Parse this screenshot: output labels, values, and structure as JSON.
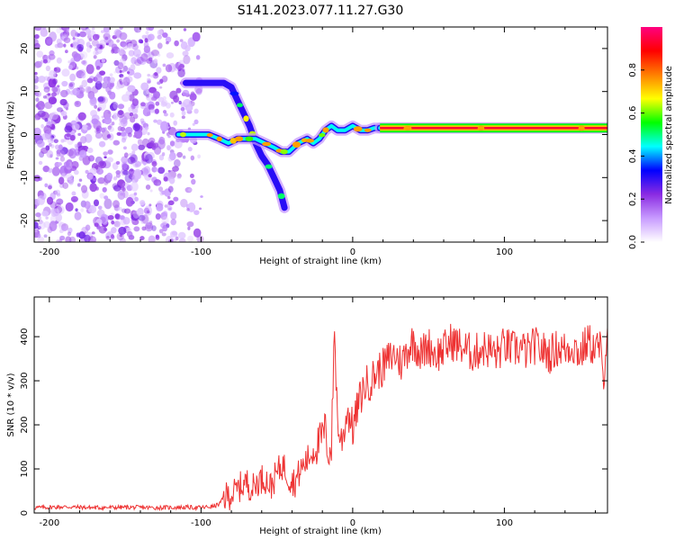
{
  "title": "S141.2023.077.11.27.G30",
  "chart_data": [
    {
      "type": "heatmap",
      "xlabel": "Height of straight line (km)",
      "ylabel": "Frequency (Hz)",
      "xlim": [
        -210,
        168
      ],
      "ylim": [
        -25,
        25
      ],
      "xticks": [
        -200,
        -100,
        0,
        100
      ],
      "yticks": [
        -20,
        -10,
        0,
        10,
        20
      ],
      "colorbar": {
        "label": "Normalized spectral amplitude",
        "range": [
          0,
          1
        ],
        "ticks": [
          0.0,
          0.2,
          0.4,
          0.6,
          0.8
        ],
        "colormap": [
          "#ffffff",
          "#c89bff",
          "#8a2be2",
          "#0000ff",
          "#00ffff",
          "#00ff00",
          "#ffff00",
          "#ff7f00",
          "#ff0000",
          "#ff0080"
        ]
      },
      "noise_region": {
        "x": [
          -210,
          -97
        ],
        "y": [
          -25,
          25
        ],
        "amplitude": 0.2
      },
      "tracks": [
        {
          "name": "",
          "points": [
            [
              -110,
              12
            ],
            [
              -100,
              12
            ],
            [
              -92,
              12
            ],
            [
              -85,
              12
            ],
            [
              -80,
              11
            ],
            [
              -76,
              8
            ],
            [
              -72,
              5
            ],
            [
              -68,
              2
            ],
            [
              -64,
              -2
            ],
            [
              -60,
              -5
            ],
            [
              -56,
              -7
            ],
            [
              -52,
              -10
            ],
            [
              -48,
              -13
            ],
            [
              -45,
              -17
            ]
          ],
          "amplitude": 0.3
        },
        {
          "name": "",
          "points": [
            [
              -115,
              0
            ],
            [
              -105,
              0
            ],
            [
              -95,
              0
            ],
            [
              -88,
              -1
            ],
            [
              -82,
              -2
            ],
            [
              -76,
              -1
            ],
            [
              -70,
              -1
            ],
            [
              -64,
              -1
            ],
            [
              -58,
              -2
            ],
            [
              -52,
              -3
            ],
            [
              -47,
              -4
            ],
            [
              -42,
              -4
            ],
            [
              -36,
              -2
            ],
            [
              -30,
              -1
            ],
            [
              -26,
              -2
            ],
            [
              -22,
              -1
            ],
            [
              -18,
              1
            ],
            [
              -14,
              2
            ],
            [
              -10,
              1
            ],
            [
              -5,
              1
            ],
            [
              0,
              2
            ],
            [
              5,
              1
            ],
            [
              10,
              1
            ],
            [
              14,
              1.5
            ],
            [
              20,
              1.5
            ],
            [
              30,
              1.5
            ],
            [
              50,
              1.5
            ],
            [
              80,
              1.5
            ],
            [
              120,
              1.5
            ],
            [
              168,
              1.5
            ]
          ],
          "amplitude": 0.55
        },
        {
          "name": "",
          "points": [
            [
              18,
              1.5
            ],
            [
              60,
              1.5
            ],
            [
              100,
              1.5
            ],
            [
              140,
              1.5
            ],
            [
              168,
              1.5
            ]
          ],
          "amplitude": 0.95
        }
      ]
    },
    {
      "type": "line",
      "xlabel": "Height of straight line (km)",
      "ylabel": "SNR (10 * v/v)",
      "xlim": [
        -210,
        168
      ],
      "ylim": [
        0,
        490
      ],
      "xticks": [
        -200,
        -100,
        0,
        100
      ],
      "yticks": [
        0,
        100,
        200,
        300,
        400
      ],
      "series": [
        {
          "name": "",
          "color": "#ee3333",
          "x": [
            -210,
            -190,
            -170,
            -150,
            -130,
            -110,
            -100,
            -92,
            -88,
            -85,
            -82,
            -78,
            -74,
            -70,
            -66,
            -62,
            -58,
            -54,
            -50,
            -46,
            -42,
            -38,
            -34,
            -30,
            -26,
            -22,
            -18,
            -16,
            -14,
            -12,
            -10,
            -8,
            -6,
            -4,
            -2,
            0,
            4,
            8,
            12,
            16,
            20,
            24,
            28,
            32,
            36,
            40,
            45,
            50,
            55,
            60,
            65,
            70,
            75,
            80,
            85,
            90,
            95,
            100,
            105,
            110,
            115,
            120,
            125,
            130,
            135,
            140,
            145,
            150,
            155,
            160,
            163,
            165,
            168
          ],
          "y": [
            12,
            14,
            12,
            13,
            12,
            13,
            12,
            15,
            20,
            35,
            40,
            45,
            60,
            70,
            55,
            75,
            80,
            60,
            90,
            110,
            80,
            70,
            100,
            120,
            140,
            160,
            190,
            130,
            150,
            420,
            210,
            160,
            180,
            230,
            220,
            190,
            250,
            290,
            300,
            320,
            330,
            350,
            360,
            340,
            370,
            390,
            360,
            380,
            360,
            370,
            390,
            380,
            370,
            360,
            375,
            370,
            360,
            380,
            370,
            375,
            365,
            380,
            370,
            360,
            375,
            370,
            380,
            360,
            390,
            370,
            380,
            300,
            420
          ]
        }
      ]
    }
  ]
}
